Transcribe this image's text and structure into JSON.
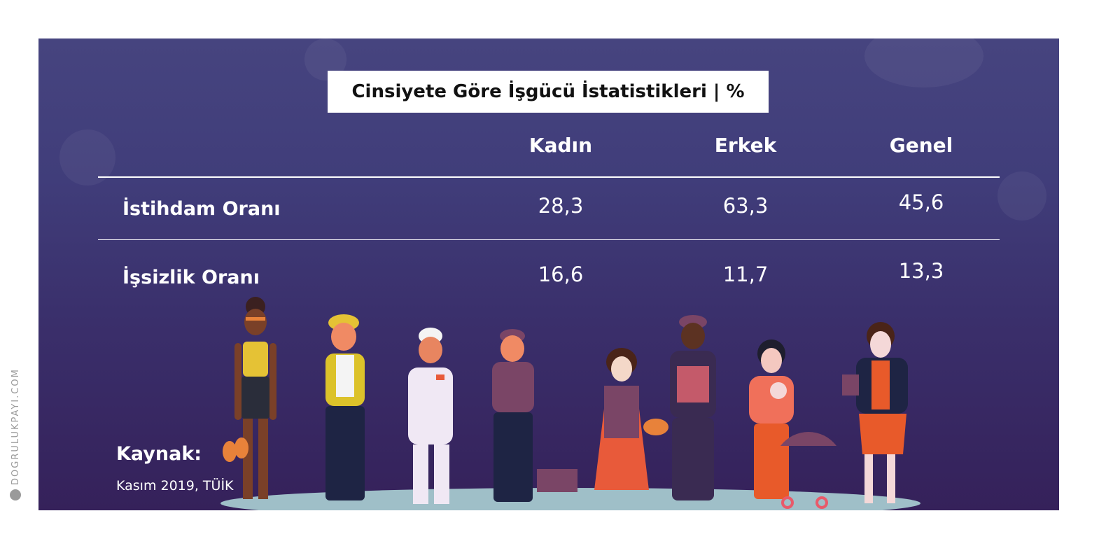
{
  "chart_data": {
    "type": "table",
    "title": "Cinsiyete Göre İşgücü İstatistikleri | %",
    "columns": [
      "Kadın",
      "Erkek",
      "Genel"
    ],
    "rows": [
      {
        "label": "İstihdam Oranı",
        "values": [
          "28,3",
          "63,3",
          "45,6"
        ]
      },
      {
        "label": "İşsizlik Oranı",
        "values": [
          "16,6",
          "11,7",
          "13,3"
        ]
      }
    ],
    "source_label": "Kaynak:",
    "source": "Kasım 2019, TÜİK"
  },
  "watermark": "DOGRULUKPAYI.COM",
  "colors": {
    "background": "#403d7a",
    "text": "#ffffff",
    "title_box": "#ffffff"
  }
}
